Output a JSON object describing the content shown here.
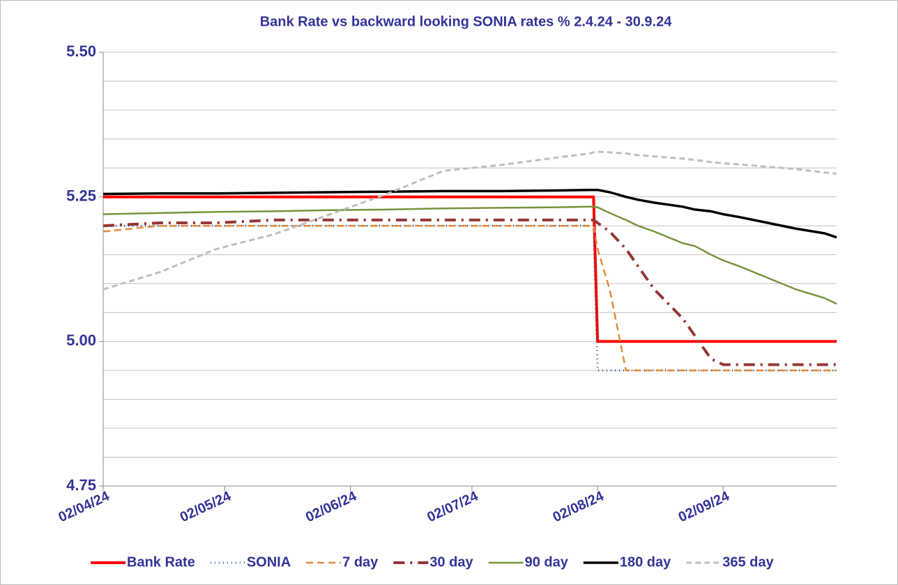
{
  "chart_data": {
    "type": "line",
    "title": "Bank Rate vs backward looking SONIA rates % 2.4.24 - 30.9.24",
    "x": [
      "2024-04-02",
      "2024-04-16",
      "2024-04-30",
      "2024-05-14",
      "2024-05-28",
      "2024-06-11",
      "2024-06-25",
      "2024-07-09",
      "2024-07-23",
      "2024-07-31",
      "2024-08-01",
      "2024-08-02",
      "2024-08-05",
      "2024-08-09",
      "2024-08-12",
      "2024-08-16",
      "2024-08-23",
      "2024-08-26",
      "2024-08-30",
      "2024-09-02",
      "2024-09-06",
      "2024-09-13",
      "2024-09-20",
      "2024-09-27",
      "2024-09-30"
    ],
    "xlim": [
      "2024-04-02",
      "2024-09-30"
    ],
    "xticks": [
      {
        "value": "2024-04-02",
        "label": "02/04/24"
      },
      {
        "value": "2024-05-02",
        "label": "02/05/24"
      },
      {
        "value": "2024-06-02",
        "label": "02/06/24"
      },
      {
        "value": "2024-07-02",
        "label": "02/07/24"
      },
      {
        "value": "2024-08-02",
        "label": "02/08/24"
      },
      {
        "value": "2024-09-02",
        "label": "02/09/24"
      }
    ],
    "ylim": [
      4.75,
      5.5
    ],
    "yticks": [
      {
        "value": 4.75,
        "label": "4.75"
      },
      {
        "value": 5,
        "label": "5.00"
      },
      {
        "value": 5.25,
        "label": "5.25"
      },
      {
        "value": 5.5,
        "label": "5.50"
      }
    ],
    "minor_yticks": [
      4.8,
      4.85,
      4.9,
      4.95,
      5.05,
      5.1,
      5.15,
      5.2,
      5.3,
      5.35,
      5.4,
      5.45
    ],
    "grid": true,
    "legend": "bottom",
    "series": [
      {
        "name": "Bank Rate",
        "color": "#ff0000",
        "width": 4,
        "dash": "",
        "values": [
          5.25,
          5.25,
          5.25,
          5.25,
          5.25,
          5.25,
          5.25,
          5.25,
          5.25,
          5.25,
          5.25,
          5,
          5,
          5,
          5,
          5,
          5,
          5,
          5,
          5,
          5,
          5,
          5,
          5,
          5
        ]
      },
      {
        "name": "SONIA",
        "color": "#2e5c96",
        "width": 3,
        "dash": "1 5",
        "values": [
          5.2,
          5.2,
          5.2,
          5.2,
          5.2,
          5.2,
          5.2,
          5.2,
          5.2,
          5.2,
          5.2,
          4.95,
          4.95,
          4.95,
          4.95,
          4.95,
          4.95,
          4.95,
          4.95,
          4.95,
          4.95,
          4.95,
          4.95,
          4.95,
          4.95
        ]
      },
      {
        "name": "7 day",
        "color": "#e2893b",
        "width": 2.5,
        "dash": "10 6",
        "values": [
          5.19,
          5.2,
          5.2,
          5.2,
          5.2,
          5.2,
          5.2,
          5.2,
          5.2,
          5.2,
          5.2,
          5.16,
          5.09,
          4.95,
          4.95,
          4.95,
          4.95,
          4.95,
          4.95,
          4.95,
          4.95,
          4.95,
          4.95,
          4.95,
          4.95
        ]
      },
      {
        "name": "30 day",
        "color": "#953735",
        "width": 4,
        "dash": "16 8 3 8",
        "values": [
          5.2,
          5.205,
          5.205,
          5.21,
          5.21,
          5.21,
          5.21,
          5.21,
          5.21,
          5.21,
          5.21,
          5.205,
          5.19,
          5.16,
          5.13,
          5.09,
          5.04,
          5.01,
          4.97,
          4.96,
          4.96,
          4.96,
          4.96,
          4.96,
          4.96
        ]
      },
      {
        "name": "90 day",
        "color": "#77933c",
        "width": 2.5,
        "dash": "",
        "values": [
          5.22,
          5.222,
          5.224,
          5.225,
          5.227,
          5.228,
          5.23,
          5.231,
          5.232,
          5.233,
          5.233,
          5.232,
          5.222,
          5.21,
          5.2,
          5.19,
          5.17,
          5.165,
          5.15,
          5.14,
          5.13,
          5.11,
          5.09,
          5.075,
          5.065
        ]
      },
      {
        "name": "180 day",
        "color": "#000000",
        "width": 3.5,
        "dash": "",
        "values": [
          5.255,
          5.256,
          5.256,
          5.257,
          5.258,
          5.259,
          5.26,
          5.26,
          5.261,
          5.262,
          5.262,
          5.262,
          5.258,
          5.25,
          5.245,
          5.24,
          5.233,
          5.228,
          5.225,
          5.22,
          5.215,
          5.205,
          5.195,
          5.187,
          5.18
        ]
      },
      {
        "name": "365 day",
        "color": "#bfbfbf",
        "width": 3,
        "dash": "8 5",
        "values": [
          5.09,
          5.12,
          5.16,
          5.185,
          5.22,
          5.255,
          5.295,
          5.305,
          5.318,
          5.325,
          5.327,
          5.328,
          5.327,
          5.325,
          5.322,
          5.32,
          5.316,
          5.314,
          5.31,
          5.308,
          5.306,
          5.302,
          5.298,
          5.292,
          5.29
        ]
      }
    ]
  }
}
